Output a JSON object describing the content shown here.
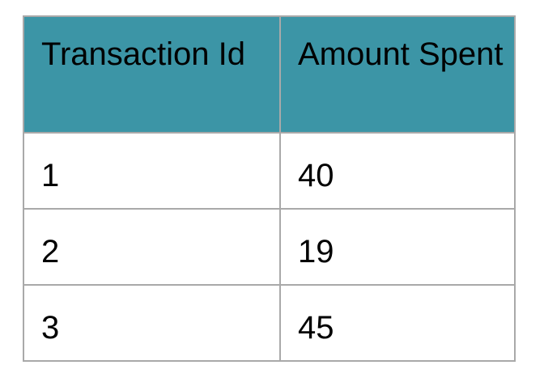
{
  "table": {
    "headers": [
      "Transaction Id",
      "Amount Spent"
    ],
    "rows": [
      [
        "1",
        "40"
      ],
      [
        "2",
        "19"
      ],
      [
        "3",
        "45"
      ]
    ]
  },
  "colors": {
    "header_background": "#3c95a6",
    "border": "#a9a9a9",
    "text": "#000000"
  }
}
